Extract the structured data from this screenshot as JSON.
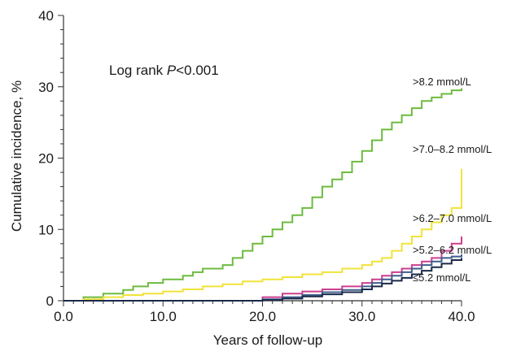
{
  "chart_data": {
    "type": "line",
    "title": "",
    "xlabel": "Years of follow-up",
    "ylabel": "Cumulative incidence, %",
    "xlim": [
      0,
      40
    ],
    "ylim": [
      0,
      40
    ],
    "x_ticks": [
      0,
      10,
      20,
      30,
      40
    ],
    "x_tick_labels": [
      "0.0",
      "10.0",
      "20.0",
      "30.0",
      "40.0"
    ],
    "y_ticks": [
      0,
      10,
      20,
      30,
      40
    ],
    "y_tick_labels": [
      "0",
      "10",
      "20",
      "30",
      "40"
    ],
    "grid": false,
    "annotation": {
      "prefix": "Log rank ",
      "italic": "P",
      "suffix": "<0.001"
    },
    "series": [
      {
        "name": ">8.2 mmol/L",
        "color": "#6dbb3f",
        "points": [
          [
            0,
            0
          ],
          [
            2,
            0.5
          ],
          [
            4,
            1
          ],
          [
            6,
            1.5
          ],
          [
            7,
            2
          ],
          [
            8.5,
            2.5
          ],
          [
            10,
            3
          ],
          [
            12,
            3.5
          ],
          [
            13,
            4
          ],
          [
            14,
            4.5
          ],
          [
            16,
            5
          ],
          [
            17,
            6
          ],
          [
            18,
            7
          ],
          [
            19,
            8
          ],
          [
            20,
            9
          ],
          [
            21,
            10
          ],
          [
            22,
            11
          ],
          [
            23,
            12
          ],
          [
            24,
            13
          ],
          [
            25,
            14.5
          ],
          [
            26,
            16
          ],
          [
            27,
            17
          ],
          [
            28,
            18
          ],
          [
            29,
            19.5
          ],
          [
            30,
            21
          ],
          [
            31,
            22.5
          ],
          [
            32,
            24
          ],
          [
            33,
            25
          ],
          [
            34,
            26
          ],
          [
            35,
            27
          ],
          [
            36,
            28
          ],
          [
            37,
            28.5
          ],
          [
            38,
            29
          ],
          [
            39,
            29.5
          ],
          [
            40,
            29.8
          ]
        ]
      },
      {
        "name": ">7.0–8.2 mmol/L",
        "color": "#f0e33a",
        "points": [
          [
            0,
            0
          ],
          [
            2,
            0.2
          ],
          [
            4,
            0.5
          ],
          [
            6,
            0.8
          ],
          [
            8,
            1
          ],
          [
            10,
            1.3
          ],
          [
            12,
            1.6
          ],
          [
            14,
            2
          ],
          [
            16,
            2.3
          ],
          [
            18,
            2.7
          ],
          [
            20,
            3
          ],
          [
            22,
            3.3
          ],
          [
            24,
            3.7
          ],
          [
            26,
            4
          ],
          [
            28,
            4.5
          ],
          [
            30,
            5
          ],
          [
            31,
            5.5
          ],
          [
            32,
            6
          ],
          [
            33,
            7
          ],
          [
            34,
            8
          ],
          [
            35,
            9
          ],
          [
            36,
            10
          ],
          [
            37,
            11
          ],
          [
            38,
            12
          ],
          [
            39,
            13
          ],
          [
            40,
            18.5
          ]
        ]
      },
      {
        "name": ">6.2–7.0 mmol/L",
        "color": "#cc3f8e",
        "points": [
          [
            0,
            0
          ],
          [
            2,
            0
          ],
          [
            4,
            0
          ],
          [
            6,
            0
          ],
          [
            8,
            0
          ],
          [
            10,
            0
          ],
          [
            12,
            0
          ],
          [
            14,
            0
          ],
          [
            16,
            0
          ],
          [
            18,
            0
          ],
          [
            20,
            0.5
          ],
          [
            22,
            1
          ],
          [
            24,
            1.3
          ],
          [
            26,
            1.6
          ],
          [
            28,
            2
          ],
          [
            30,
            2.5
          ],
          [
            31,
            3
          ],
          [
            32,
            3.5
          ],
          [
            33,
            4
          ],
          [
            34,
            4.5
          ],
          [
            35,
            5
          ],
          [
            36,
            5.5
          ],
          [
            37,
            6
          ],
          [
            38,
            7
          ],
          [
            39,
            8
          ],
          [
            40,
            9
          ]
        ]
      },
      {
        "name": ">5.2–6.2 mmol/L",
        "color": "#3f5f8c",
        "points": [
          [
            0,
            0
          ],
          [
            2,
            0
          ],
          [
            4,
            0
          ],
          [
            6,
            0
          ],
          [
            8,
            0
          ],
          [
            10,
            0
          ],
          [
            12,
            0
          ],
          [
            14,
            0
          ],
          [
            16,
            0
          ],
          [
            18,
            0
          ],
          [
            20,
            0.2
          ],
          [
            22,
            0.5
          ],
          [
            24,
            0.8
          ],
          [
            26,
            1.2
          ],
          [
            28,
            1.5
          ],
          [
            30,
            2
          ],
          [
            31,
            2.5
          ],
          [
            32,
            3
          ],
          [
            33,
            3.5
          ],
          [
            34,
            4
          ],
          [
            35,
            4.5
          ],
          [
            36,
            5
          ],
          [
            37,
            5.5
          ],
          [
            38,
            6
          ],
          [
            39,
            6.2
          ],
          [
            40,
            6.5
          ]
        ]
      },
      {
        "name": "≤5.2 mmol/L",
        "color": "#1b2a4a",
        "points": [
          [
            0,
            0
          ],
          [
            2,
            0
          ],
          [
            4,
            0
          ],
          [
            6,
            0
          ],
          [
            8,
            0
          ],
          [
            10,
            0
          ],
          [
            12,
            0
          ],
          [
            14,
            0
          ],
          [
            16,
            0
          ],
          [
            18,
            0
          ],
          [
            20,
            0.1
          ],
          [
            22,
            0.3
          ],
          [
            24,
            0.6
          ],
          [
            26,
            0.9
          ],
          [
            28,
            1.2
          ],
          [
            30,
            1.6
          ],
          [
            31,
            2
          ],
          [
            32,
            2.4
          ],
          [
            33,
            2.8
          ],
          [
            34,
            3.2
          ],
          [
            35,
            3.7
          ],
          [
            36,
            4.2
          ],
          [
            37,
            4.7
          ],
          [
            38,
            5.2
          ],
          [
            39,
            5.7
          ],
          [
            40,
            6
          ]
        ]
      }
    ]
  }
}
